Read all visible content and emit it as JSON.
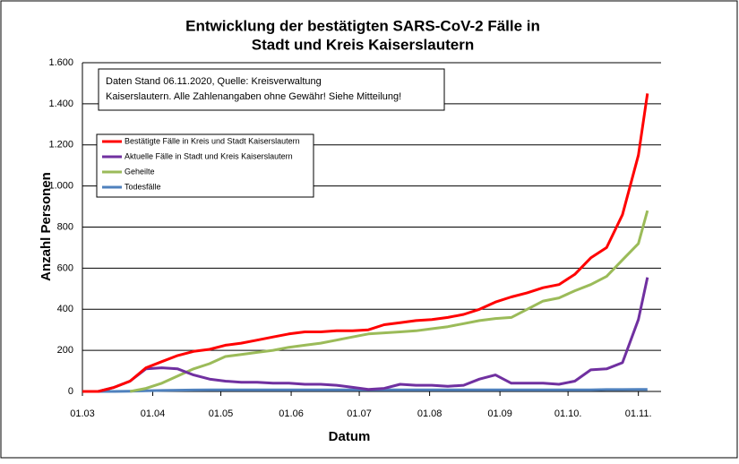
{
  "chart_data": {
    "type": "line",
    "title": [
      "Entwicklung der bestätigten SARS-CoV-2 Fälle in",
      "Stadt und Kreis Kaiserslautern"
    ],
    "annotation": [
      "Daten Stand 06.11.2020, Quelle: Kreisverwaltung",
      "Kaiserslautern. Alle Zahlenangaben ohne Gewähr! Siehe Mitteilung!"
    ],
    "x_label": "Datum",
    "y_label": "Anzahl Personen",
    "x": [
      "01.03",
      "08.03",
      "15.03",
      "22.03",
      "29.03",
      "05.04",
      "12.04",
      "19.04",
      "26.04",
      "03.05",
      "10.05",
      "17.05",
      "24.05",
      "31.05",
      "07.06",
      "14.06",
      "21.06",
      "28.06",
      "05.07",
      "12.07",
      "19.07",
      "26.07",
      "02.08",
      "09.08",
      "16.08",
      "23.08",
      "30.08",
      "06.09",
      "13.09",
      "20.09",
      "27.09",
      "04.10",
      "11.10",
      "18.10",
      "25.10",
      "01.11",
      "05.11"
    ],
    "series": [
      {
        "name": "Bestätigte Fälle in Kreis und Stadt Kaiserslautern",
        "color": "#ff0000",
        "values": [
          0,
          0,
          20,
          50,
          115,
          145,
          175,
          195,
          205,
          225,
          235,
          250,
          265,
          280,
          290,
          290,
          295,
          295,
          300,
          325,
          335,
          345,
          350,
          360,
          375,
          400,
          435,
          460,
          480,
          505,
          520,
          570,
          650,
          700,
          860,
          1150,
          1450
        ]
      },
      {
        "name": "Aktuelle Fälle in Stadt und Kreis Kaiserslautern",
        "color": "#7030a0",
        "values": [
          0,
          0,
          20,
          50,
          110,
          115,
          110,
          80,
          60,
          50,
          45,
          45,
          40,
          40,
          35,
          35,
          30,
          20,
          10,
          15,
          35,
          30,
          30,
          25,
          30,
          60,
          80,
          40,
          40,
          40,
          35,
          50,
          105,
          110,
          140,
          350,
          555
        ]
      },
      {
        "name": "Geheilte",
        "color": "#9bbb59",
        "values": [
          null,
          null,
          null,
          0,
          15,
          40,
          75,
          110,
          135,
          170,
          180,
          190,
          200,
          215,
          225,
          235,
          250,
          265,
          280,
          285,
          290,
          295,
          305,
          315,
          330,
          345,
          355,
          360,
          400,
          440,
          455,
          490,
          520,
          560,
          640,
          720,
          880
        ]
      },
      {
        "name": "Todesfälle",
        "color": "#4f81bd",
        "values": [
          0,
          0,
          0,
          1,
          3,
          5,
          6,
          7,
          8,
          8,
          8,
          8,
          8,
          8,
          8,
          8,
          8,
          8,
          8,
          8,
          8,
          8,
          8,
          8,
          8,
          8,
          8,
          8,
          8,
          8,
          8,
          8,
          8,
          9,
          9,
          10,
          10
        ]
      }
    ],
    "xlim": [
      "01.03",
      "11.11"
    ],
    "xticks": [
      "01.03",
      "01.04",
      "01.05",
      "01.06",
      "01.07",
      "01.08",
      "01.09",
      {
        "value": "01.10",
        "label": "01.10."
      },
      {
        "value": "01.11",
        "label": "01.11."
      }
    ],
    "ylim": [
      0,
      1600
    ],
    "yticks": [
      0,
      {
        "value": 200,
        "label": "200"
      },
      {
        "value": 400,
        "label": "400"
      },
      {
        "value": 600,
        "label": "600"
      },
      {
        "value": 800,
        "label": "800"
      },
      {
        "value": 1000,
        "label": "1.000"
      },
      {
        "value": 1200,
        "label": "1.200"
      },
      {
        "value": 1400,
        "label": "1.400"
      },
      {
        "value": 1600,
        "label": "1.600"
      }
    ],
    "grid": true,
    "legend": "upper-left"
  }
}
